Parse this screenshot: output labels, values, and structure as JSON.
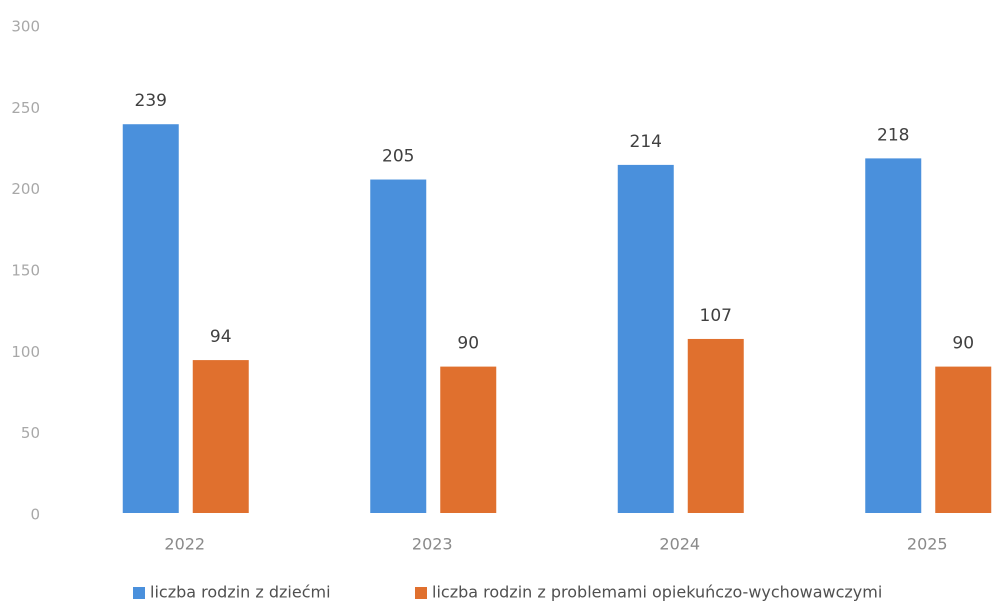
{
  "chart_data": {
    "type": "bar",
    "categories": [
      "2022",
      "2023",
      "2024",
      "2025"
    ],
    "series": [
      {
        "name": "liczba rodzin z dziećmi",
        "color": "#4a90dc",
        "values": [
          239,
          205,
          214,
          218
        ]
      },
      {
        "name": "liczba rodzin z problemami opiekuńczo-wychowawczymi",
        "color": "#e0702e",
        "values": [
          94,
          90,
          107,
          90
        ]
      }
    ],
    "ylim": [
      0,
      300
    ],
    "yticks": [
      0,
      50,
      100,
      150,
      200,
      250,
      300
    ],
    "grid": false,
    "legend": "bottom"
  }
}
